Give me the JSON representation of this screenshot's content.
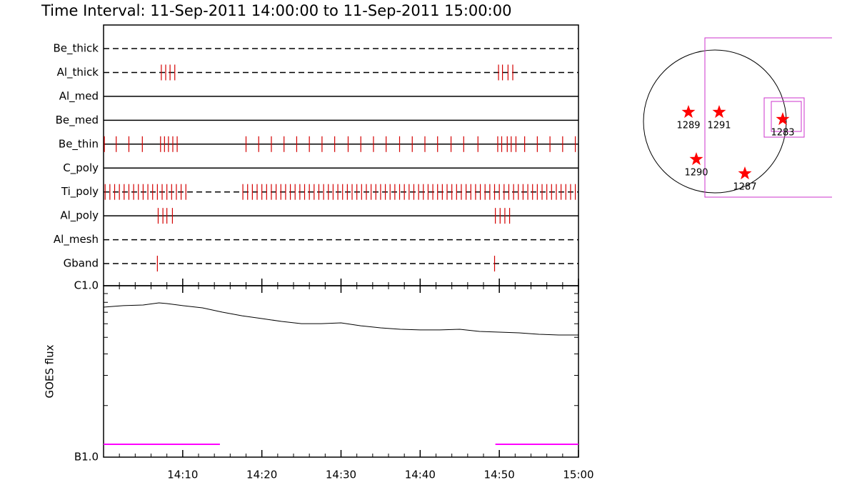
{
  "title": "Time Interval: 11-Sep-2011 14:00:00 to 11-Sep-2011 15:00:00",
  "chart_data": [
    {
      "type": "event",
      "color": "#d40000",
      "xlim": [
        0,
        60
      ],
      "series": [
        {
          "name": "Be_thick",
          "style": "dashed",
          "values": []
        },
        {
          "name": "Al_thick",
          "style": "dashed",
          "values": [
            7.3,
            7.85,
            8.4,
            9.0,
            49.9,
            50.4,
            51.1,
            51.7
          ]
        },
        {
          "name": "Al_med",
          "style": "solid",
          "values": []
        },
        {
          "name": "Be_med",
          "style": "solid",
          "values": []
        },
        {
          "name": "Be_thin",
          "style": "solid",
          "values": [
            0.1,
            1.6,
            3.2,
            4.9,
            7.2,
            7.7,
            8.2,
            8.75,
            9.3,
            18.0,
            19.6,
            21.2,
            22.8,
            24.4,
            26.0,
            27.6,
            29.2,
            30.9,
            32.5,
            34.1,
            35.7,
            37.4,
            39.0,
            40.6,
            42.2,
            43.9,
            45.5,
            47.3,
            49.8,
            50.3,
            51.0,
            51.5,
            52.1,
            53.2,
            54.8,
            56.4,
            58.0,
            59.6
          ]
        },
        {
          "name": "C_poly",
          "style": "solid",
          "values": []
        },
        {
          "name": "Ti_poly",
          "style": "dashed",
          "values": [
            0.2,
            0.8,
            1.4,
            2.0,
            2.6,
            3.2,
            3.8,
            4.4,
            5.0,
            5.6,
            6.2,
            6.8,
            7.4,
            8.0,
            8.6,
            9.2,
            9.8,
            10.4,
            17.6,
            18.2,
            18.8,
            19.4,
            20.0,
            20.6,
            21.2,
            21.8,
            22.4,
            23.0,
            23.6,
            24.2,
            24.8,
            25.4,
            26.0,
            26.6,
            27.2,
            27.8,
            28.4,
            29.0,
            29.6,
            30.2,
            30.8,
            31.4,
            32.0,
            32.6,
            33.2,
            33.8,
            34.4,
            35.0,
            35.6,
            36.2,
            36.8,
            37.4,
            38.0,
            38.6,
            39.2,
            39.8,
            40.4,
            41.0,
            41.6,
            42.2,
            42.8,
            43.4,
            44.0,
            44.6,
            45.2,
            45.8,
            46.4,
            47.0,
            47.6,
            48.2,
            48.8,
            49.4,
            50.0,
            50.6,
            51.2,
            51.8,
            52.4,
            53.0,
            53.6,
            54.2,
            54.8,
            55.4,
            56.0,
            56.6,
            57.2,
            57.8,
            58.4,
            59.0,
            59.6
          ]
        },
        {
          "name": "Al_poly",
          "style": "solid",
          "values": [
            6.9,
            7.5,
            8.0,
            8.7,
            49.5,
            50.1,
            50.7,
            51.3
          ]
        },
        {
          "name": "Al_mesh",
          "style": "dashed",
          "values": []
        },
        {
          "name": "Gband",
          "style": "dashed",
          "values": [
            6.8,
            49.4
          ]
        }
      ]
    },
    {
      "type": "line",
      "ylabel": "GOES flux",
      "color": "#000000",
      "log": true,
      "x": [
        0,
        2.5,
        5,
        7,
        8,
        10,
        12.5,
        15,
        17.5,
        20,
        22.5,
        25,
        27.5,
        30,
        32.5,
        35,
        37.5,
        40,
        42.5,
        45,
        47.5,
        50,
        52.5,
        55,
        57.5,
        60
      ],
      "values": [
        7.5e-07,
        7.65e-07,
        7.72e-07,
        7.94e-07,
        7.87e-07,
        7.65e-07,
        7.43e-07,
        7.01e-07,
        6.68e-07,
        6.43e-07,
        6.19e-07,
        6.01e-07,
        6.01e-07,
        6.07e-07,
        5.84e-07,
        5.68e-07,
        5.57e-07,
        5.52e-07,
        5.52e-07,
        5.57e-07,
        5.41e-07,
        5.36e-07,
        5.31e-07,
        5.21e-07,
        5.16e-07,
        5.16e-07
      ],
      "ylim": [
        1e-07,
        1e-06
      ],
      "yticks": [
        {
          "value": 1e-06,
          "label": "C1.0"
        },
        {
          "value": 1e-07,
          "label": "B1.0"
        }
      ],
      "yminor": [
        2e-07,
        3e-07,
        4e-07,
        5e-07,
        6e-07,
        7e-07,
        8e-07,
        9e-07
      ],
      "xlim": [
        0,
        60
      ],
      "xticks": [
        {
          "value": 10,
          "label": "14:10"
        },
        {
          "value": 20,
          "label": "14:20"
        },
        {
          "value": 30,
          "label": "14:30"
        },
        {
          "value": 40,
          "label": "14:40"
        },
        {
          "value": 50,
          "label": "14:50"
        },
        {
          "value": 60,
          "label": "15:00"
        }
      ],
      "xminor": [
        2,
        4,
        6,
        8,
        12,
        14,
        16,
        18,
        22,
        24,
        26,
        28,
        32,
        34,
        36,
        38,
        42,
        44,
        46,
        48,
        52,
        54,
        56,
        58
      ],
      "intervals": [
        [
          0,
          14.7
        ],
        [
          49.5,
          60
        ]
      ],
      "interval_color": "#ff00ff"
    },
    {
      "type": "map",
      "regions": [
        "1289",
        "1291",
        "1283",
        "1290",
        "1287"
      ],
      "color": "#ff0000",
      "box_color": "#cc33cc"
    }
  ]
}
